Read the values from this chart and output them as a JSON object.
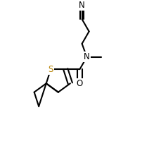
{
  "bg_color": "#ffffff",
  "line_color": "#000000",
  "s_color": "#b8860b",
  "bond_width": 1.5,
  "figsize": [
    2.29,
    2.24
  ],
  "dpi": 100,
  "xlim": [
    0,
    10
  ],
  "ylim": [
    0,
    10
  ]
}
